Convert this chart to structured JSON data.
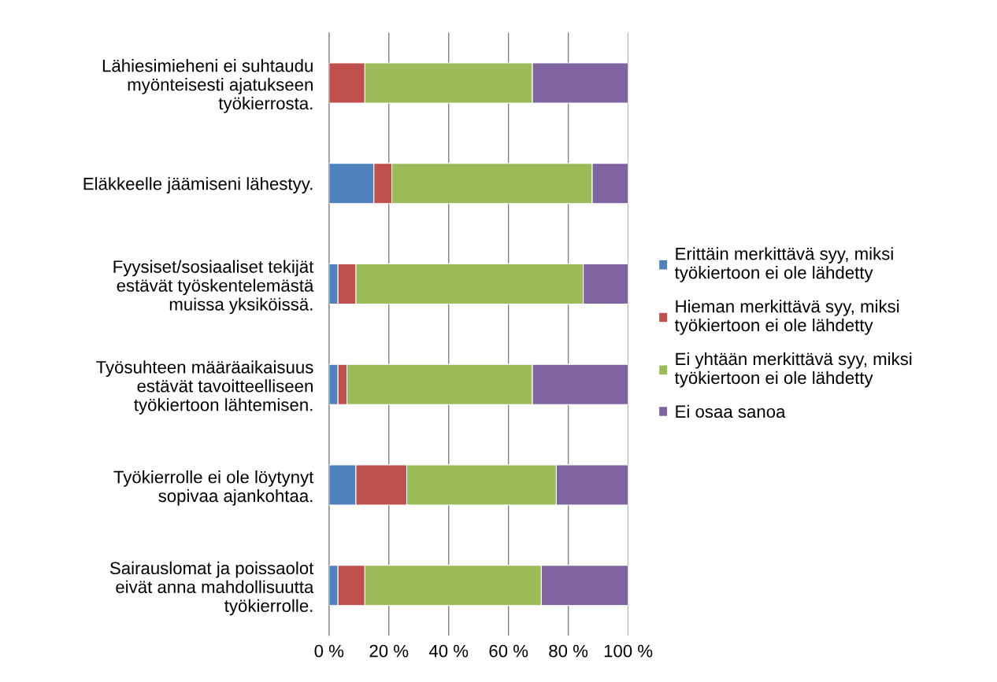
{
  "chart_data": {
    "type": "bar",
    "orientation": "horizontal",
    "stacked": true,
    "categories": [
      "Lähiesimieheni ei suhtaudu\nmyönteisesti ajatukseen\ntyökierrosta.",
      "Eläkkeelle jäämiseni lähestyy.",
      "Fyysiset/sosiaaliset tekijät\nestävät työskentelemästä\nmuissa yksiköissä.",
      "Työsuhteen määräaikaisuus\nestävät tavoitteelliseen\ntyökiertoon lähtemisen.",
      "Työkierrolle ei ole löytynyt\nsopivaa ajankohtaa.",
      "Sairauslomat ja poissaolot\neivät anna mahdollisuutta\ntyökierrolle."
    ],
    "series": [
      {
        "name": "Erittäin merkittävä syy, miksi\ntyökiertoon ei ole lähdetty",
        "color": "#4f81bd",
        "values": [
          0,
          15,
          3,
          3,
          9,
          3
        ]
      },
      {
        "name": "Hieman merkittävä syy, miksi\ntyökiertoon ei ole lähdetty",
        "color": "#c0504d",
        "values": [
          12,
          6,
          6,
          3,
          17,
          9
        ]
      },
      {
        "name": "Ei yhtään merkittävä syy, miksi\ntyökiertoon ei ole lähdetty",
        "color": "#9bbb59",
        "values": [
          56,
          67,
          76,
          62,
          50,
          59
        ]
      },
      {
        "name": "Ei osaa sanoa",
        "color": "#8064a2",
        "values": [
          32,
          12,
          15,
          32,
          24,
          29
        ]
      }
    ],
    "xlim": [
      0,
      100
    ],
    "xticks": [
      {
        "value": 0,
        "label": "0 %"
      },
      {
        "value": 20,
        "label": "20 %"
      },
      {
        "value": 40,
        "label": "40 %"
      },
      {
        "value": 60,
        "label": "60 %"
      },
      {
        "value": 80,
        "label": "80 %"
      },
      {
        "value": 100,
        "label": "100 %"
      }
    ],
    "grid": "x",
    "legend": "right"
  }
}
